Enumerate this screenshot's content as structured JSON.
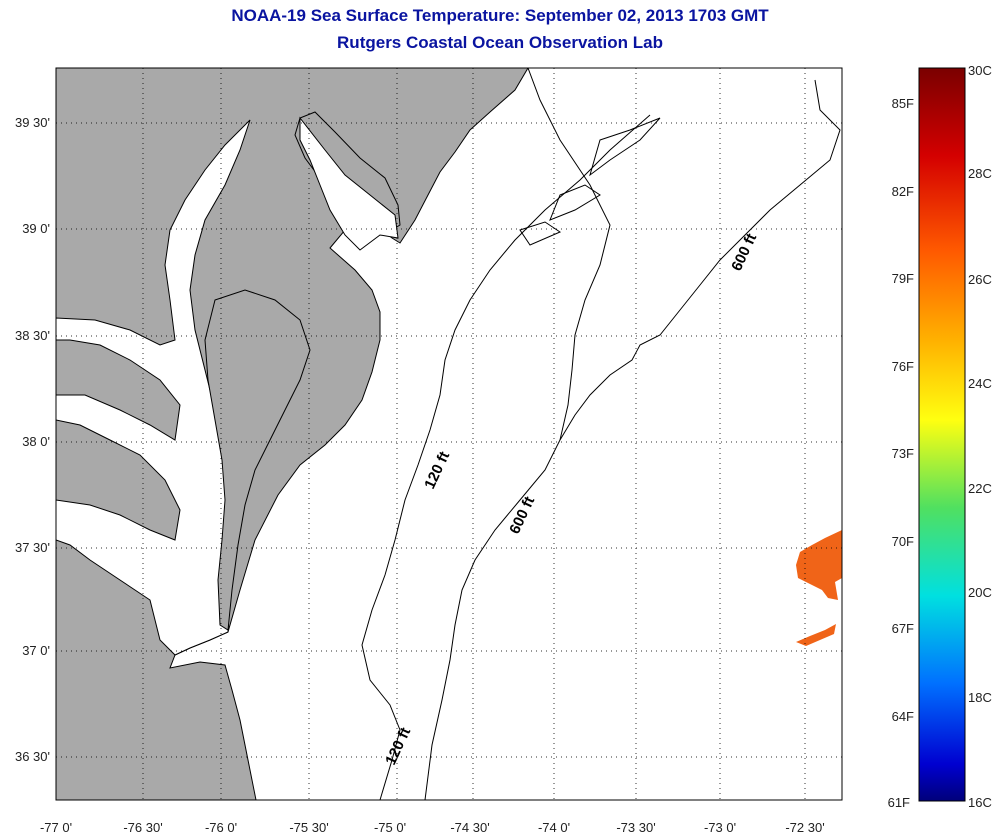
{
  "title": "NOAA-19 Sea Surface Temperature:  September 02, 2013 1703 GMT",
  "subtitle": "Rutgers Coastal Ocean Observation Lab",
  "colors": {
    "land": "#a9a9a9",
    "title": "#0a14a0",
    "sst_patch": "#f06418"
  },
  "map": {
    "lon_ticks": [
      "-77 0'",
      "-76 30'",
      "-76 0'",
      "-75 30'",
      "-75 0'",
      "-74 30'",
      "-74 0'",
      "-73 30'",
      "-73 0'",
      "-72 30'"
    ],
    "lat_ticks": [
      "39 30'",
      "39 0'",
      "38 30'",
      "38 0'",
      "37 30'",
      "37 0'",
      "36 30'"
    ],
    "isobath_labels": [
      "120 ft",
      "600 ft",
      "600 ft",
      "120 ft"
    ],
    "grid": "dotted"
  },
  "colorbar": {
    "celsius_labels": [
      "30C",
      "28C",
      "26C",
      "24C",
      "22C",
      "20C",
      "18C",
      "16C"
    ],
    "fahrenheit_labels": [
      "85F",
      "82F",
      "79F",
      "76F",
      "73F",
      "70F",
      "67F",
      "64F",
      "61F"
    ]
  }
}
